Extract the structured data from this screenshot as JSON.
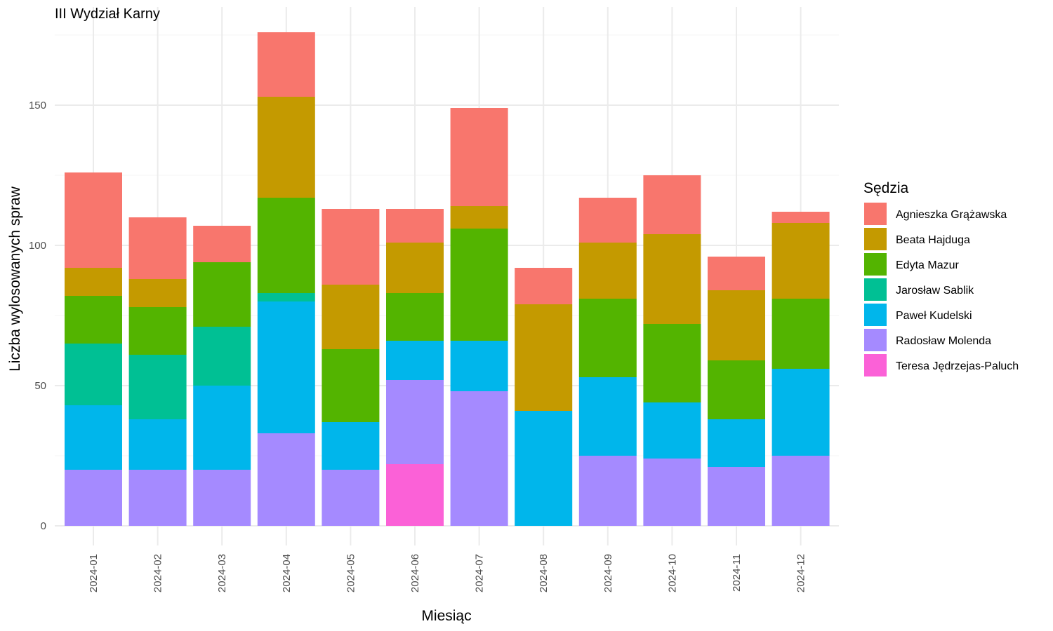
{
  "chart_data": {
    "type": "bar",
    "stacked": true,
    "title": "III Wydział Karny",
    "xlabel": "Miesiąc",
    "ylabel": "Liczba wylosowanych spraw",
    "ylim": [
      0,
      176
    ],
    "yticks": [
      0,
      50,
      100,
      150
    ],
    "grid": true,
    "legend_title": "Sędzia",
    "legend_position": "right",
    "categories": [
      "2024-01",
      "2024-02",
      "2024-03",
      "2024-04",
      "2024-05",
      "2024-06",
      "2024-07",
      "2024-08",
      "2024-09",
      "2024-10",
      "2024-11",
      "2024-12"
    ],
    "series": [
      {
        "name": "Agnieszka Grążawska",
        "color": "#F8766D",
        "values": [
          34,
          22,
          13,
          23,
          27,
          12,
          35,
          13,
          16,
          21,
          12,
          4
        ]
      },
      {
        "name": "Beata Hajduga",
        "color": "#C49A00",
        "values": [
          10,
          10,
          0,
          36,
          23,
          18,
          8,
          38,
          20,
          32,
          25,
          27
        ]
      },
      {
        "name": "Edyta Mazur",
        "color": "#53B400",
        "values": [
          17,
          17,
          23,
          34,
          26,
          17,
          40,
          0,
          28,
          28,
          21,
          25
        ]
      },
      {
        "name": "Jarosław Sablik",
        "color": "#00C094",
        "values": [
          22,
          23,
          21,
          3,
          0,
          0,
          0,
          0,
          0,
          0,
          0,
          0
        ]
      },
      {
        "name": "Paweł Kudelski",
        "color": "#00B6EB",
        "values": [
          23,
          18,
          30,
          47,
          17,
          14,
          18,
          41,
          28,
          20,
          17,
          31
        ]
      },
      {
        "name": "Radosław Molenda",
        "color": "#A58AFF",
        "values": [
          20,
          20,
          20,
          33,
          20,
          30,
          48,
          0,
          25,
          24,
          21,
          25
        ]
      },
      {
        "name": "Teresa Jędrzejas-Paluch",
        "color": "#FB61D7",
        "values": [
          0,
          0,
          0,
          0,
          0,
          22,
          0,
          0,
          0,
          0,
          0,
          0
        ]
      }
    ]
  }
}
